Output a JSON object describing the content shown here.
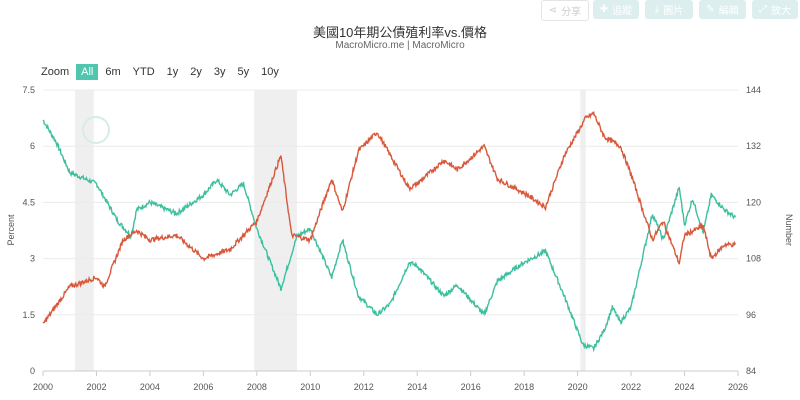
{
  "toolbar": [
    {
      "label": "分享",
      "icon": "share-icon"
    },
    {
      "label": "追蹤",
      "icon": "plus-icon"
    },
    {
      "label": "圖片",
      "icon": "download-icon"
    },
    {
      "label": "編輯",
      "icon": "pencil-icon"
    },
    {
      "label": "放大",
      "icon": "expand-icon"
    }
  ],
  "watermark": "MacroMicro",
  "zoom": {
    "label": "Zoom",
    "options": [
      "All",
      "6m",
      "YTD",
      "1y",
      "2y",
      "3y",
      "5y",
      "10y"
    ],
    "active": "All"
  },
  "colors": {
    "yield": "#3dbf9e",
    "price": "#d9583b",
    "recession": "#efefef",
    "accent": "#4fc6ad"
  },
  "chart_data": {
    "type": "line",
    "title": "美國10年期公債殖利率vs.價格",
    "subtitle": "MacroMicro.me | MacroMicro",
    "xlabel": "",
    "ylabel_left": "Percent",
    "ylabel_right": "Number",
    "xlim": [
      2000,
      2026
    ],
    "ylim_left": [
      0,
      7.5
    ],
    "ylim_right": [
      84,
      144
    ],
    "x_ticks": [
      "2000",
      "2002",
      "2004",
      "2006",
      "2008",
      "2010",
      "2012",
      "2014",
      "2016",
      "2018",
      "2020",
      "2022",
      "2024",
      "2026"
    ],
    "y_ticks_left": [
      "0",
      "1.5",
      "3",
      "4.5",
      "6",
      "7.5"
    ],
    "y_ticks_right": [
      "84",
      "96",
      "108",
      "120",
      "132",
      "144"
    ],
    "recessions": [
      [
        2001.2,
        2001.9
      ],
      [
        2007.9,
        2009.5
      ],
      [
        2020.1,
        2020.3
      ]
    ],
    "series": [
      {
        "axis": "left",
        "color": "#3dbf9e",
        "points": [
          [
            2000,
            6.7
          ],
          [
            2000.5,
            6.1
          ],
          [
            2001,
            5.3
          ],
          [
            2002,
            5.0
          ],
          [
            2002.8,
            4.0
          ],
          [
            2003.3,
            3.6
          ],
          [
            2003.5,
            4.3
          ],
          [
            2004,
            4.5
          ],
          [
            2005,
            4.2
          ],
          [
            2006,
            4.7
          ],
          [
            2006.5,
            5.1
          ],
          [
            2007,
            4.7
          ],
          [
            2007.5,
            5.0
          ],
          [
            2008,
            3.8
          ],
          [
            2008.9,
            2.2
          ],
          [
            2009.5,
            3.6
          ],
          [
            2010,
            3.8
          ],
          [
            2010.8,
            2.5
          ],
          [
            2011.2,
            3.5
          ],
          [
            2011.8,
            2.0
          ],
          [
            2012.5,
            1.5
          ],
          [
            2013,
            1.8
          ],
          [
            2013.7,
            2.9
          ],
          [
            2014,
            2.8
          ],
          [
            2015,
            2.0
          ],
          [
            2015.5,
            2.3
          ],
          [
            2016.5,
            1.5
          ],
          [
            2017,
            2.4
          ],
          [
            2018,
            2.9
          ],
          [
            2018.8,
            3.2
          ],
          [
            2019.5,
            2.0
          ],
          [
            2020.2,
            0.7
          ],
          [
            2020.6,
            0.6
          ],
          [
            2021,
            1.1
          ],
          [
            2021.3,
            1.7
          ],
          [
            2021.6,
            1.3
          ],
          [
            2022,
            1.7
          ],
          [
            2022.8,
            4.2
          ],
          [
            2023.2,
            3.5
          ],
          [
            2023.8,
            4.9
          ],
          [
            2024,
            3.9
          ],
          [
            2024.3,
            4.6
          ],
          [
            2024.7,
            3.7
          ],
          [
            2025,
            4.7
          ],
          [
            2025.5,
            4.3
          ],
          [
            2025.9,
            4.1
          ]
        ]
      },
      {
        "axis": "right",
        "color": "#d9583b",
        "points": [
          [
            2000,
            94
          ],
          [
            2001,
            102
          ],
          [
            2002,
            104
          ],
          [
            2002.3,
            102
          ],
          [
            2003,
            112
          ],
          [
            2003.5,
            114
          ],
          [
            2004,
            112
          ],
          [
            2005,
            113
          ],
          [
            2006,
            108
          ],
          [
            2007,
            110
          ],
          [
            2008,
            116
          ],
          [
            2008.9,
            130
          ],
          [
            2009.3,
            113
          ],
          [
            2010,
            112
          ],
          [
            2010.8,
            125
          ],
          [
            2011.2,
            118
          ],
          [
            2011.8,
            131
          ],
          [
            2012.5,
            135
          ],
          [
            2013.7,
            123
          ],
          [
            2014,
            124
          ],
          [
            2015,
            129
          ],
          [
            2015.5,
            127
          ],
          [
            2016.5,
            132
          ],
          [
            2017,
            125
          ],
          [
            2018,
            122
          ],
          [
            2018.8,
            119
          ],
          [
            2019.5,
            130
          ],
          [
            2020.3,
            138
          ],
          [
            2020.6,
            139
          ],
          [
            2021,
            134
          ],
          [
            2021.6,
            132
          ],
          [
            2022,
            126
          ],
          [
            2022.8,
            112
          ],
          [
            2023.2,
            116
          ],
          [
            2023.8,
            107
          ],
          [
            2024,
            113
          ],
          [
            2024.7,
            115
          ],
          [
            2025,
            108
          ],
          [
            2025.5,
            111
          ],
          [
            2025.9,
            111
          ]
        ]
      }
    ]
  }
}
